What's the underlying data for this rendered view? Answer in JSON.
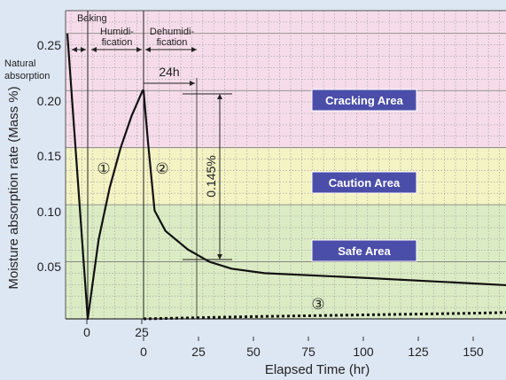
{
  "chart_data": {
    "type": "line",
    "title": "",
    "xlabel": "Elapsed Time (hr)",
    "ylabel": "Moisture absorption rate (Mass %)",
    "ylim": [
      0,
      0.27
    ],
    "y_ticks": [
      "0.05",
      "0.10",
      "0.15",
      "0.20",
      "0.25"
    ],
    "x_ticks_top": [
      "0",
      "25"
    ],
    "x_ticks_bottom": [
      "0",
      "25",
      "50",
      "75",
      "100",
      "125",
      "150"
    ],
    "grid": true,
    "zones": [
      {
        "name": "Cracking Area",
        "range": [
          0.15,
          0.27
        ],
        "color": "#f6dcea"
      },
      {
        "name": "Caution Area",
        "range": [
          0.1,
          0.15
        ],
        "color": "#f3f3c4"
      },
      {
        "name": "Safe Area",
        "range": [
          0,
          0.1
        ],
        "color": "#dbecc4"
      }
    ],
    "phase_labels": {
      "natural": [
        "Natural",
        "absorption"
      ],
      "baking": "Baking",
      "humidification": [
        "Humidi-",
        "fication"
      ],
      "dehumidification": [
        "Dehumidi-",
        "fication"
      ]
    },
    "annotations": {
      "duration": "24h",
      "delta": "0.145%"
    },
    "curve_labels": [
      "①",
      "②",
      "③"
    ],
    "series": [
      {
        "points": [
          {
            "phase": "natural",
            "t": 0,
            "y": 0.25
          },
          {
            "phase": "baking",
            "t": 0,
            "y": 0.0
          },
          {
            "phase": "humidification",
            "t": 0,
            "y": 0.0
          },
          {
            "phase": "humidification",
            "t": 5,
            "y": 0.07
          },
          {
            "phase": "humidification",
            "t": 10,
            "y": 0.115
          },
          {
            "phase": "humidification",
            "t": 15,
            "y": 0.15
          },
          {
            "phase": "humidification",
            "t": 20,
            "y": 0.178
          },
          {
            "phase": "humidification",
            "t": 25,
            "y": 0.2
          },
          {
            "phase": "dehumidification",
            "t": 0,
            "y": 0.2
          },
          {
            "phase": "dehumidification",
            "t": 2,
            "y": 0.155
          },
          {
            "phase": "dehumidification",
            "t": 5,
            "y": 0.095
          },
          {
            "phase": "dehumidification",
            "t": 10,
            "y": 0.077
          },
          {
            "phase": "dehumidification",
            "t": 20,
            "y": 0.061
          },
          {
            "phase": "dehumidification",
            "t": 30,
            "y": 0.05
          },
          {
            "phase": "dehumidification",
            "t": 40,
            "y": 0.044
          },
          {
            "phase": "dehumidification",
            "t": 55,
            "y": 0.04
          },
          {
            "phase": "dehumidification",
            "t": 100,
            "y": 0.036
          },
          {
            "phase": "dehumidification",
            "t": 150,
            "y": 0.031
          },
          {
            "phase": "dehumidification",
            "t": 170,
            "y": 0.029
          }
        ]
      },
      {
        "points": [
          {
            "t": 0,
            "y": 0.0
          },
          {
            "t": 50,
            "y": 0.002
          },
          {
            "t": 100,
            "y": 0.0035
          },
          {
            "t": 150,
            "y": 0.005
          },
          {
            "t": 170,
            "y": 0.0058
          }
        ]
      }
    ]
  }
}
